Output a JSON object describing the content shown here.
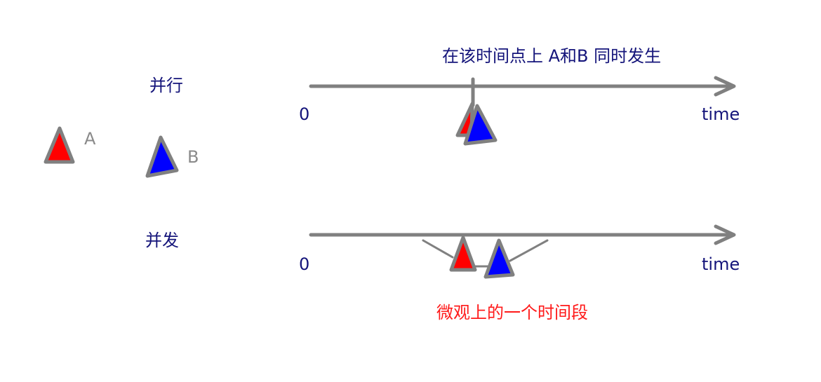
{
  "legend": {
    "a_label": "A",
    "b_label": "B"
  },
  "parallel": {
    "label": "并行",
    "origin": "0",
    "axis_label": "time",
    "annotation": "在该时间点上 A和B 同时发生"
  },
  "concurrent": {
    "label": "并发",
    "origin": "0",
    "axis_label": "time",
    "annotation": "微观上的一个时间段"
  },
  "colors": {
    "a": "#ff0000",
    "b": "#0000ff",
    "stroke": "#808080",
    "text": "#14147a",
    "highlight": "#ff1a1a"
  }
}
